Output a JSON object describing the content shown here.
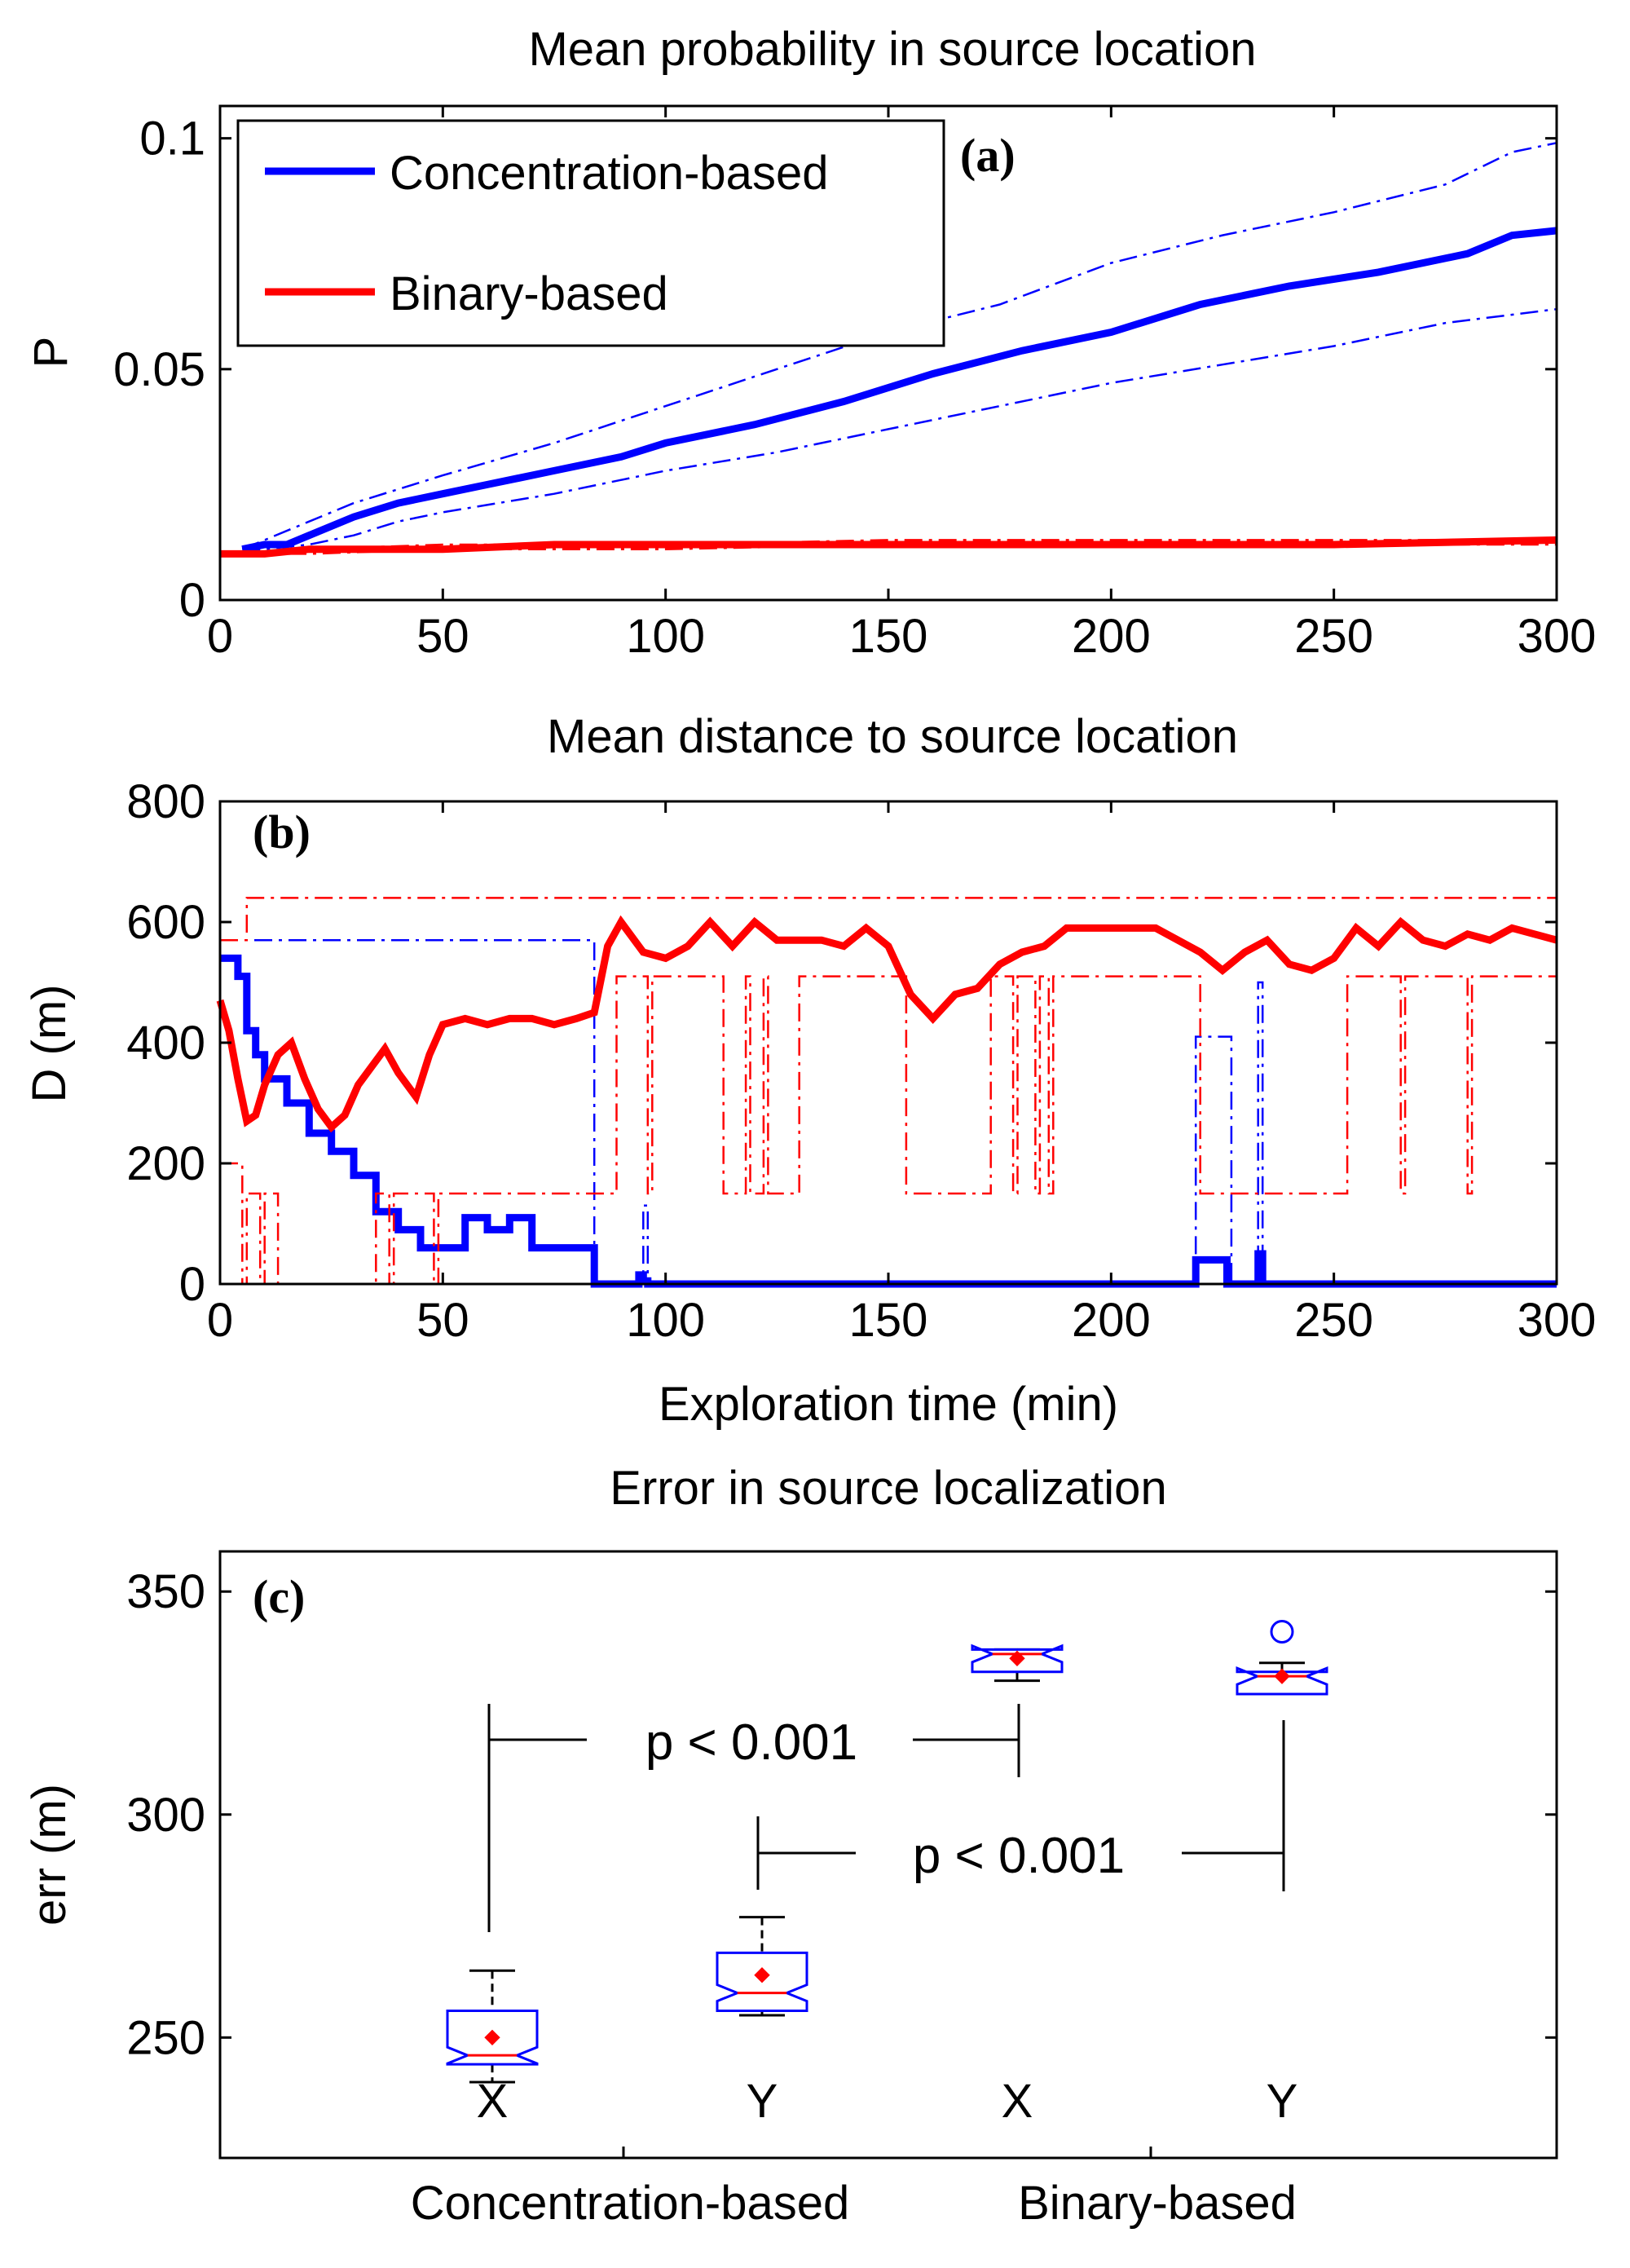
{
  "chart_data": [
    {
      "id": "a",
      "type": "line",
      "title": "Mean probability in source location",
      "tag": "(a)",
      "xlabel": "",
      "ylabel": "P",
      "xlim": [
        0,
        300
      ],
      "ylim": [
        0,
        0.107
      ],
      "xticks": [
        0,
        50,
        100,
        150,
        200,
        250,
        300
      ],
      "xtick_labels": [
        "0",
        "50",
        "100",
        "150",
        "200",
        "250",
        "300"
      ],
      "yticks": [
        0,
        0.05,
        0.1
      ],
      "ytick_labels": [
        "0",
        "0.05",
        "0.1"
      ],
      "legend": {
        "position": "top-left",
        "entries": [
          {
            "label": "Concentration-based",
            "color": "#0000ff"
          },
          {
            "label": "Binary-based",
            "color": "#ff0000"
          }
        ]
      },
      "series": [
        {
          "name": "Concentration-based",
          "color": "#0000ff",
          "style": "solid",
          "x": [
            5,
            10,
            15,
            20,
            30,
            40,
            50,
            60,
            75,
            90,
            100,
            120,
            140,
            160,
            180,
            200,
            220,
            240,
            260,
            280,
            290,
            300
          ],
          "y": [
            0.011,
            0.012,
            0.012,
            0.014,
            0.018,
            0.021,
            0.023,
            0.025,
            0.028,
            0.031,
            0.034,
            0.038,
            0.043,
            0.049,
            0.054,
            0.058,
            0.064,
            0.068,
            0.071,
            0.075,
            0.079,
            0.08
          ]
        },
        {
          "name": "Concentration-based upper",
          "color": "#0000ff",
          "style": "dashdot",
          "x": [
            5,
            10,
            20,
            30,
            40,
            50,
            75,
            100,
            125,
            150,
            175,
            200,
            225,
            250,
            275,
            290,
            300
          ],
          "y": [
            0.011,
            0.013,
            0.017,
            0.021,
            0.024,
            0.027,
            0.034,
            0.042,
            0.05,
            0.058,
            0.064,
            0.073,
            0.079,
            0.084,
            0.09,
            0.097,
            0.099
          ]
        },
        {
          "name": "Concentration-based lower",
          "color": "#0000ff",
          "style": "dashdot",
          "x": [
            5,
            10,
            20,
            30,
            40,
            50,
            75,
            100,
            125,
            150,
            175,
            200,
            225,
            250,
            275,
            300
          ],
          "y": [
            0.011,
            0.011,
            0.012,
            0.014,
            0.017,
            0.019,
            0.023,
            0.028,
            0.032,
            0.037,
            0.042,
            0.047,
            0.051,
            0.055,
            0.06,
            0.063
          ]
        },
        {
          "name": "Binary-based",
          "color": "#ff0000",
          "style": "solid",
          "x": [
            0,
            10,
            20,
            30,
            50,
            75,
            100,
            150,
            200,
            250,
            300
          ],
          "y": [
            0.01,
            0.01,
            0.011,
            0.011,
            0.011,
            0.012,
            0.012,
            0.012,
            0.012,
            0.012,
            0.013
          ]
        },
        {
          "name": "Binary-based upper",
          "color": "#ff0000",
          "style": "dashdot",
          "x": [
            0,
            20,
            50,
            100,
            150,
            200,
            225,
            250,
            300
          ],
          "y": [
            0.01,
            0.011,
            0.012,
            0.012,
            0.013,
            0.013,
            0.013,
            0.013,
            0.013
          ]
        },
        {
          "name": "Binary-based lower",
          "color": "#ff0000",
          "style": "dashdot",
          "x": [
            0,
            20,
            50,
            100,
            150,
            200,
            250,
            300
          ],
          "y": [
            0.01,
            0.01,
            0.011,
            0.011,
            0.012,
            0.012,
            0.012,
            0.012
          ]
        }
      ]
    },
    {
      "id": "b",
      "type": "line",
      "title": "Mean distance to source location",
      "tag": "(b)",
      "xlabel": "Exploration time (min)",
      "ylabel": "D (m)",
      "xlim": [
        0,
        300
      ],
      "ylim": [
        0,
        800
      ],
      "xticks": [
        0,
        50,
        100,
        150,
        200,
        250,
        300
      ],
      "xtick_labels": [
        "0",
        "50",
        "100",
        "150",
        "200",
        "250",
        "300"
      ],
      "yticks": [
        0,
        200,
        400,
        600,
        800
      ],
      "ytick_labels": [
        "0",
        "200",
        "400",
        "600",
        "800"
      ],
      "series": [
        {
          "name": "Concentration-based",
          "color": "#0000ff",
          "style": "solid",
          "step": true,
          "x": [
            0,
            4,
            6,
            8,
            10,
            15,
            20,
            25,
            30,
            35,
            40,
            45,
            55,
            60,
            65,
            70,
            75,
            84,
            92,
            94,
            95,
            96,
            218,
            219,
            225,
            226,
            232,
            233,
            234,
            300
          ],
          "y": [
            540,
            510,
            420,
            380,
            340,
            300,
            250,
            220,
            180,
            120,
            90,
            60,
            110,
            90,
            110,
            60,
            60,
            0,
            0,
            15,
            5,
            0,
            0,
            40,
            40,
            0,
            0,
            50,
            0,
            0
          ]
        },
        {
          "name": "Concentration-based upper",
          "color": "#0000ff",
          "style": "dashdot",
          "step": true,
          "x": [
            0,
            5,
            83,
            84,
            95,
            96,
            218,
            219,
            227,
            228,
            233,
            234,
            300
          ],
          "y": [
            570,
            570,
            570,
            0,
            130,
            0,
            0,
            410,
            0,
            0,
            500,
            0,
            0
          ]
        },
        {
          "name": "Binary-based",
          "color": "#ff0000",
          "style": "solid",
          "x": [
            0,
            2,
            4,
            6,
            8,
            10,
            13,
            16,
            19,
            22,
            25,
            28,
            31,
            34,
            37,
            40,
            44,
            47,
            50,
            55,
            60,
            65,
            70,
            75,
            80,
            84,
            87,
            90,
            95,
            100,
            105,
            110,
            115,
            120,
            125,
            130,
            135,
            140,
            145,
            150,
            155,
            160,
            165,
            170,
            175,
            180,
            185,
            190,
            195,
            200,
            210,
            220,
            225,
            230,
            235,
            240,
            245,
            250,
            255,
            260,
            265,
            270,
            275,
            280,
            285,
            290,
            295,
            300
          ],
          "y": [
            470,
            420,
            340,
            270,
            280,
            330,
            380,
            400,
            340,
            290,
            260,
            280,
            330,
            360,
            390,
            350,
            310,
            380,
            430,
            440,
            430,
            440,
            440,
            430,
            440,
            450,
            560,
            600,
            550,
            540,
            560,
            600,
            560,
            600,
            570,
            570,
            570,
            560,
            590,
            560,
            480,
            440,
            480,
            490,
            530,
            550,
            560,
            590,
            590,
            590,
            590,
            550,
            520,
            550,
            570,
            530,
            520,
            540,
            590,
            560,
            600,
            570,
            560,
            580,
            570,
            590,
            580,
            570
          ]
        },
        {
          "name": "Binary-based upper",
          "color": "#ff0000",
          "style": "dashdot",
          "step": true,
          "x": [
            0,
            6,
            7,
            88,
            89,
            95,
            96,
            113,
            114,
            118,
            119,
            130,
            300
          ],
          "y": [
            570,
            640,
            640,
            640,
            640,
            640,
            640,
            640,
            640,
            640,
            640,
            640,
            640
          ]
        },
        {
          "name": "Binary-based lower",
          "color": "#ff0000",
          "style": "dashdot",
          "step": true,
          "x": [
            0,
            5,
            6,
            9,
            10,
            13,
            14,
            34,
            35,
            38,
            39,
            48,
            49,
            55,
            56,
            88,
            89,
            96,
            97,
            112,
            113,
            118,
            119,
            122,
            123,
            130,
            131,
            153,
            154,
            172,
            173,
            178,
            179,
            183,
            184,
            186,
            187,
            219,
            220,
            228,
            229,
            252,
            253,
            265,
            266,
            280,
            281,
            300
          ],
          "y": [
            200,
            0,
            150,
            0,
            150,
            0,
            0,
            0,
            150,
            0,
            150,
            0,
            150,
            150,
            150,
            150,
            510,
            150,
            510,
            510,
            150,
            510,
            150,
            510,
            150,
            510,
            510,
            510,
            150,
            150,
            510,
            150,
            510,
            150,
            510,
            150,
            510,
            510,
            150,
            150,
            150,
            150,
            510,
            150,
            510,
            150,
            510,
            510
          ]
        }
      ]
    },
    {
      "id": "c",
      "type": "box",
      "title": "Error in source localization",
      "tag": "(c)",
      "xlabel": "",
      "ylabel": "err (m)",
      "ylim": [
        223,
        359
      ],
      "yticks": [
        250,
        300,
        350
      ],
      "ytick_labels": [
        "250",
        "300",
        "350"
      ],
      "groups": [
        {
          "label": "Concentration-based",
          "subcategories": [
            "X",
            "Y"
          ]
        },
        {
          "label": "Binary-based",
          "subcategories": [
            "X",
            "Y"
          ]
        }
      ],
      "boxes": [
        {
          "group": "Concentration-based",
          "label": "X",
          "whisker_low": 240,
          "q1": 244,
          "median": 246,
          "q3": 256,
          "whisker_high": 265,
          "mean": 250,
          "outliers": []
        },
        {
          "group": "Concentration-based",
          "label": "Y",
          "whisker_low": 255,
          "q1": 256,
          "median": 260,
          "q3": 269,
          "whisker_high": 277,
          "mean": 264,
          "outliers": []
        },
        {
          "group": "Binary-based",
          "label": "X",
          "whisker_low": 330,
          "q1": 332,
          "median": 336,
          "q3": 337,
          "whisker_high": 337,
          "mean": 335,
          "outliers": []
        },
        {
          "group": "Binary-based",
          "label": "Y",
          "whisker_low": 327,
          "q1": 327,
          "median": 331,
          "q3": 332,
          "whisker_high": 334,
          "mean": 331,
          "outliers": [
            341
          ]
        }
      ],
      "annotations": [
        {
          "text": "p < 0.001",
          "compares": [
            "Concentration-based X",
            "Binary-based X"
          ]
        },
        {
          "text": "p < 0.001",
          "compares": [
            "Concentration-based Y",
            "Binary-based Y"
          ]
        }
      ]
    }
  ]
}
